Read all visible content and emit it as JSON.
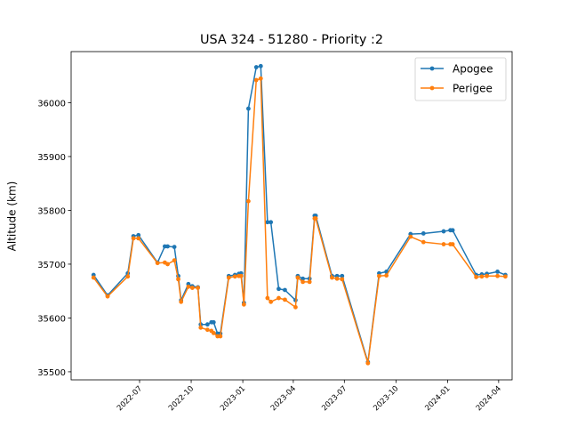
{
  "chart_data": {
    "type": "line",
    "title": "USA 324 - 51280 - Priority :2",
    "xlabel": "",
    "ylabel": "Altitude (km)",
    "xlim": [
      "2022-03-01",
      "2024-04-25"
    ],
    "ylim": [
      35485,
      36095
    ],
    "x_ticks": [
      {
        "date": "2022-07-01",
        "label": "2022-07"
      },
      {
        "date": "2022-10-01",
        "label": "2022-10"
      },
      {
        "date": "2023-01-01",
        "label": "2023-01"
      },
      {
        "date": "2023-04-01",
        "label": "2023-04"
      },
      {
        "date": "2023-07-01",
        "label": "2023-07"
      },
      {
        "date": "2023-10-01",
        "label": "2023-10"
      },
      {
        "date": "2024-01-01",
        "label": "2024-01"
      },
      {
        "date": "2024-04-01",
        "label": "2024-04"
      }
    ],
    "y_ticks": [
      35500,
      35600,
      35700,
      35800,
      35900,
      36000
    ],
    "grid": false,
    "legend_position": "top-right",
    "series": [
      {
        "name": "Apogee",
        "color": "#1f77b4",
        "points": [
          [
            "2022-04-10",
            35680
          ],
          [
            "2022-05-05",
            35642
          ],
          [
            "2022-06-10",
            35683
          ],
          [
            "2022-06-20",
            35752
          ],
          [
            "2022-06-29",
            35754
          ],
          [
            "2022-08-02",
            35703
          ],
          [
            "2022-08-15",
            35733
          ],
          [
            "2022-08-20",
            35733
          ],
          [
            "2022-09-01",
            35732
          ],
          [
            "2022-09-08",
            35678
          ],
          [
            "2022-09-13",
            35633
          ],
          [
            "2022-09-26",
            35663
          ],
          [
            "2022-10-03",
            35659
          ],
          [
            "2022-10-13",
            35657
          ],
          [
            "2022-10-18",
            35588
          ],
          [
            "2022-10-30",
            35588
          ],
          [
            "2022-11-06",
            35592
          ],
          [
            "2022-11-10",
            35592
          ],
          [
            "2022-11-17",
            35571
          ],
          [
            "2022-11-22",
            35571
          ],
          [
            "2022-12-07",
            35678
          ],
          [
            "2022-12-18",
            35680
          ],
          [
            "2022-12-25",
            35682
          ],
          [
            "2022-12-29",
            35683
          ],
          [
            "2023-01-03",
            35628
          ],
          [
            "2023-01-11",
            35989
          ],
          [
            "2023-01-25",
            36066
          ],
          [
            "2023-02-02",
            36068
          ],
          [
            "2023-02-14",
            35778
          ],
          [
            "2023-02-20",
            35778
          ],
          [
            "2023-03-06",
            35654
          ],
          [
            "2023-03-17",
            35652
          ],
          [
            "2023-04-05",
            35633
          ],
          [
            "2023-04-09",
            35678
          ],
          [
            "2023-04-18",
            35673
          ],
          [
            "2023-04-30",
            35673
          ],
          [
            "2023-05-09",
            35790
          ],
          [
            "2023-05-11",
            35790
          ],
          [
            "2023-06-09",
            35678
          ],
          [
            "2023-06-18",
            35678
          ],
          [
            "2023-06-27",
            35678
          ],
          [
            "2023-08-12",
            35518
          ],
          [
            "2023-09-01",
            35683
          ],
          [
            "2023-09-14",
            35686
          ],
          [
            "2023-10-27",
            35756
          ],
          [
            "2023-11-19",
            35757
          ],
          [
            "2023-12-25",
            35761
          ],
          [
            "2024-01-06",
            35763
          ],
          [
            "2024-01-10",
            35763
          ],
          [
            "2024-02-21",
            35680
          ],
          [
            "2024-03-02",
            35681
          ],
          [
            "2024-03-11",
            35682
          ],
          [
            "2024-03-30",
            35686
          ],
          [
            "2024-04-13",
            35680
          ]
        ]
      },
      {
        "name": "Perigee",
        "color": "#ff7f0e",
        "points": [
          [
            "2022-04-10",
            35675
          ],
          [
            "2022-05-05",
            35640
          ],
          [
            "2022-06-10",
            35677
          ],
          [
            "2022-06-20",
            35748
          ],
          [
            "2022-06-29",
            35748
          ],
          [
            "2022-08-02",
            35702
          ],
          [
            "2022-08-15",
            35703
          ],
          [
            "2022-08-20",
            35700
          ],
          [
            "2022-09-01",
            35707
          ],
          [
            "2022-09-08",
            35672
          ],
          [
            "2022-09-13",
            35630
          ],
          [
            "2022-09-26",
            35658
          ],
          [
            "2022-10-03",
            35656
          ],
          [
            "2022-10-13",
            35656
          ],
          [
            "2022-10-18",
            35582
          ],
          [
            "2022-10-30",
            35578
          ],
          [
            "2022-11-06",
            35576
          ],
          [
            "2022-11-10",
            35572
          ],
          [
            "2022-11-17",
            35566
          ],
          [
            "2022-11-22",
            35566
          ],
          [
            "2022-12-07",
            35675
          ],
          [
            "2022-12-18",
            35677
          ],
          [
            "2022-12-25",
            35678
          ],
          [
            "2022-12-29",
            35678
          ],
          [
            "2023-01-03",
            35625
          ],
          [
            "2023-01-11",
            35817
          ],
          [
            "2023-01-25",
            36042
          ],
          [
            "2023-02-02",
            36045
          ],
          [
            "2023-02-14",
            35637
          ],
          [
            "2023-02-20",
            35630
          ],
          [
            "2023-03-06",
            35637
          ],
          [
            "2023-03-17",
            35634
          ],
          [
            "2023-04-05",
            35620
          ],
          [
            "2023-04-09",
            35675
          ],
          [
            "2023-04-18",
            35667
          ],
          [
            "2023-04-30",
            35667
          ],
          [
            "2023-05-09",
            35785
          ],
          [
            "2023-05-11",
            35785
          ],
          [
            "2023-06-09",
            35675
          ],
          [
            "2023-06-18",
            35673
          ],
          [
            "2023-06-27",
            35672
          ],
          [
            "2023-08-12",
            35516
          ],
          [
            "2023-09-01",
            35678
          ],
          [
            "2023-09-14",
            35679
          ],
          [
            "2023-10-27",
            35751
          ],
          [
            "2023-11-19",
            35741
          ],
          [
            "2023-12-25",
            35737
          ],
          [
            "2024-01-06",
            35737
          ],
          [
            "2024-01-10",
            35737
          ],
          [
            "2024-02-21",
            35676
          ],
          [
            "2024-03-02",
            35677
          ],
          [
            "2024-03-11",
            35678
          ],
          [
            "2024-03-30",
            35678
          ],
          [
            "2024-04-13",
            35677
          ]
        ]
      }
    ]
  }
}
